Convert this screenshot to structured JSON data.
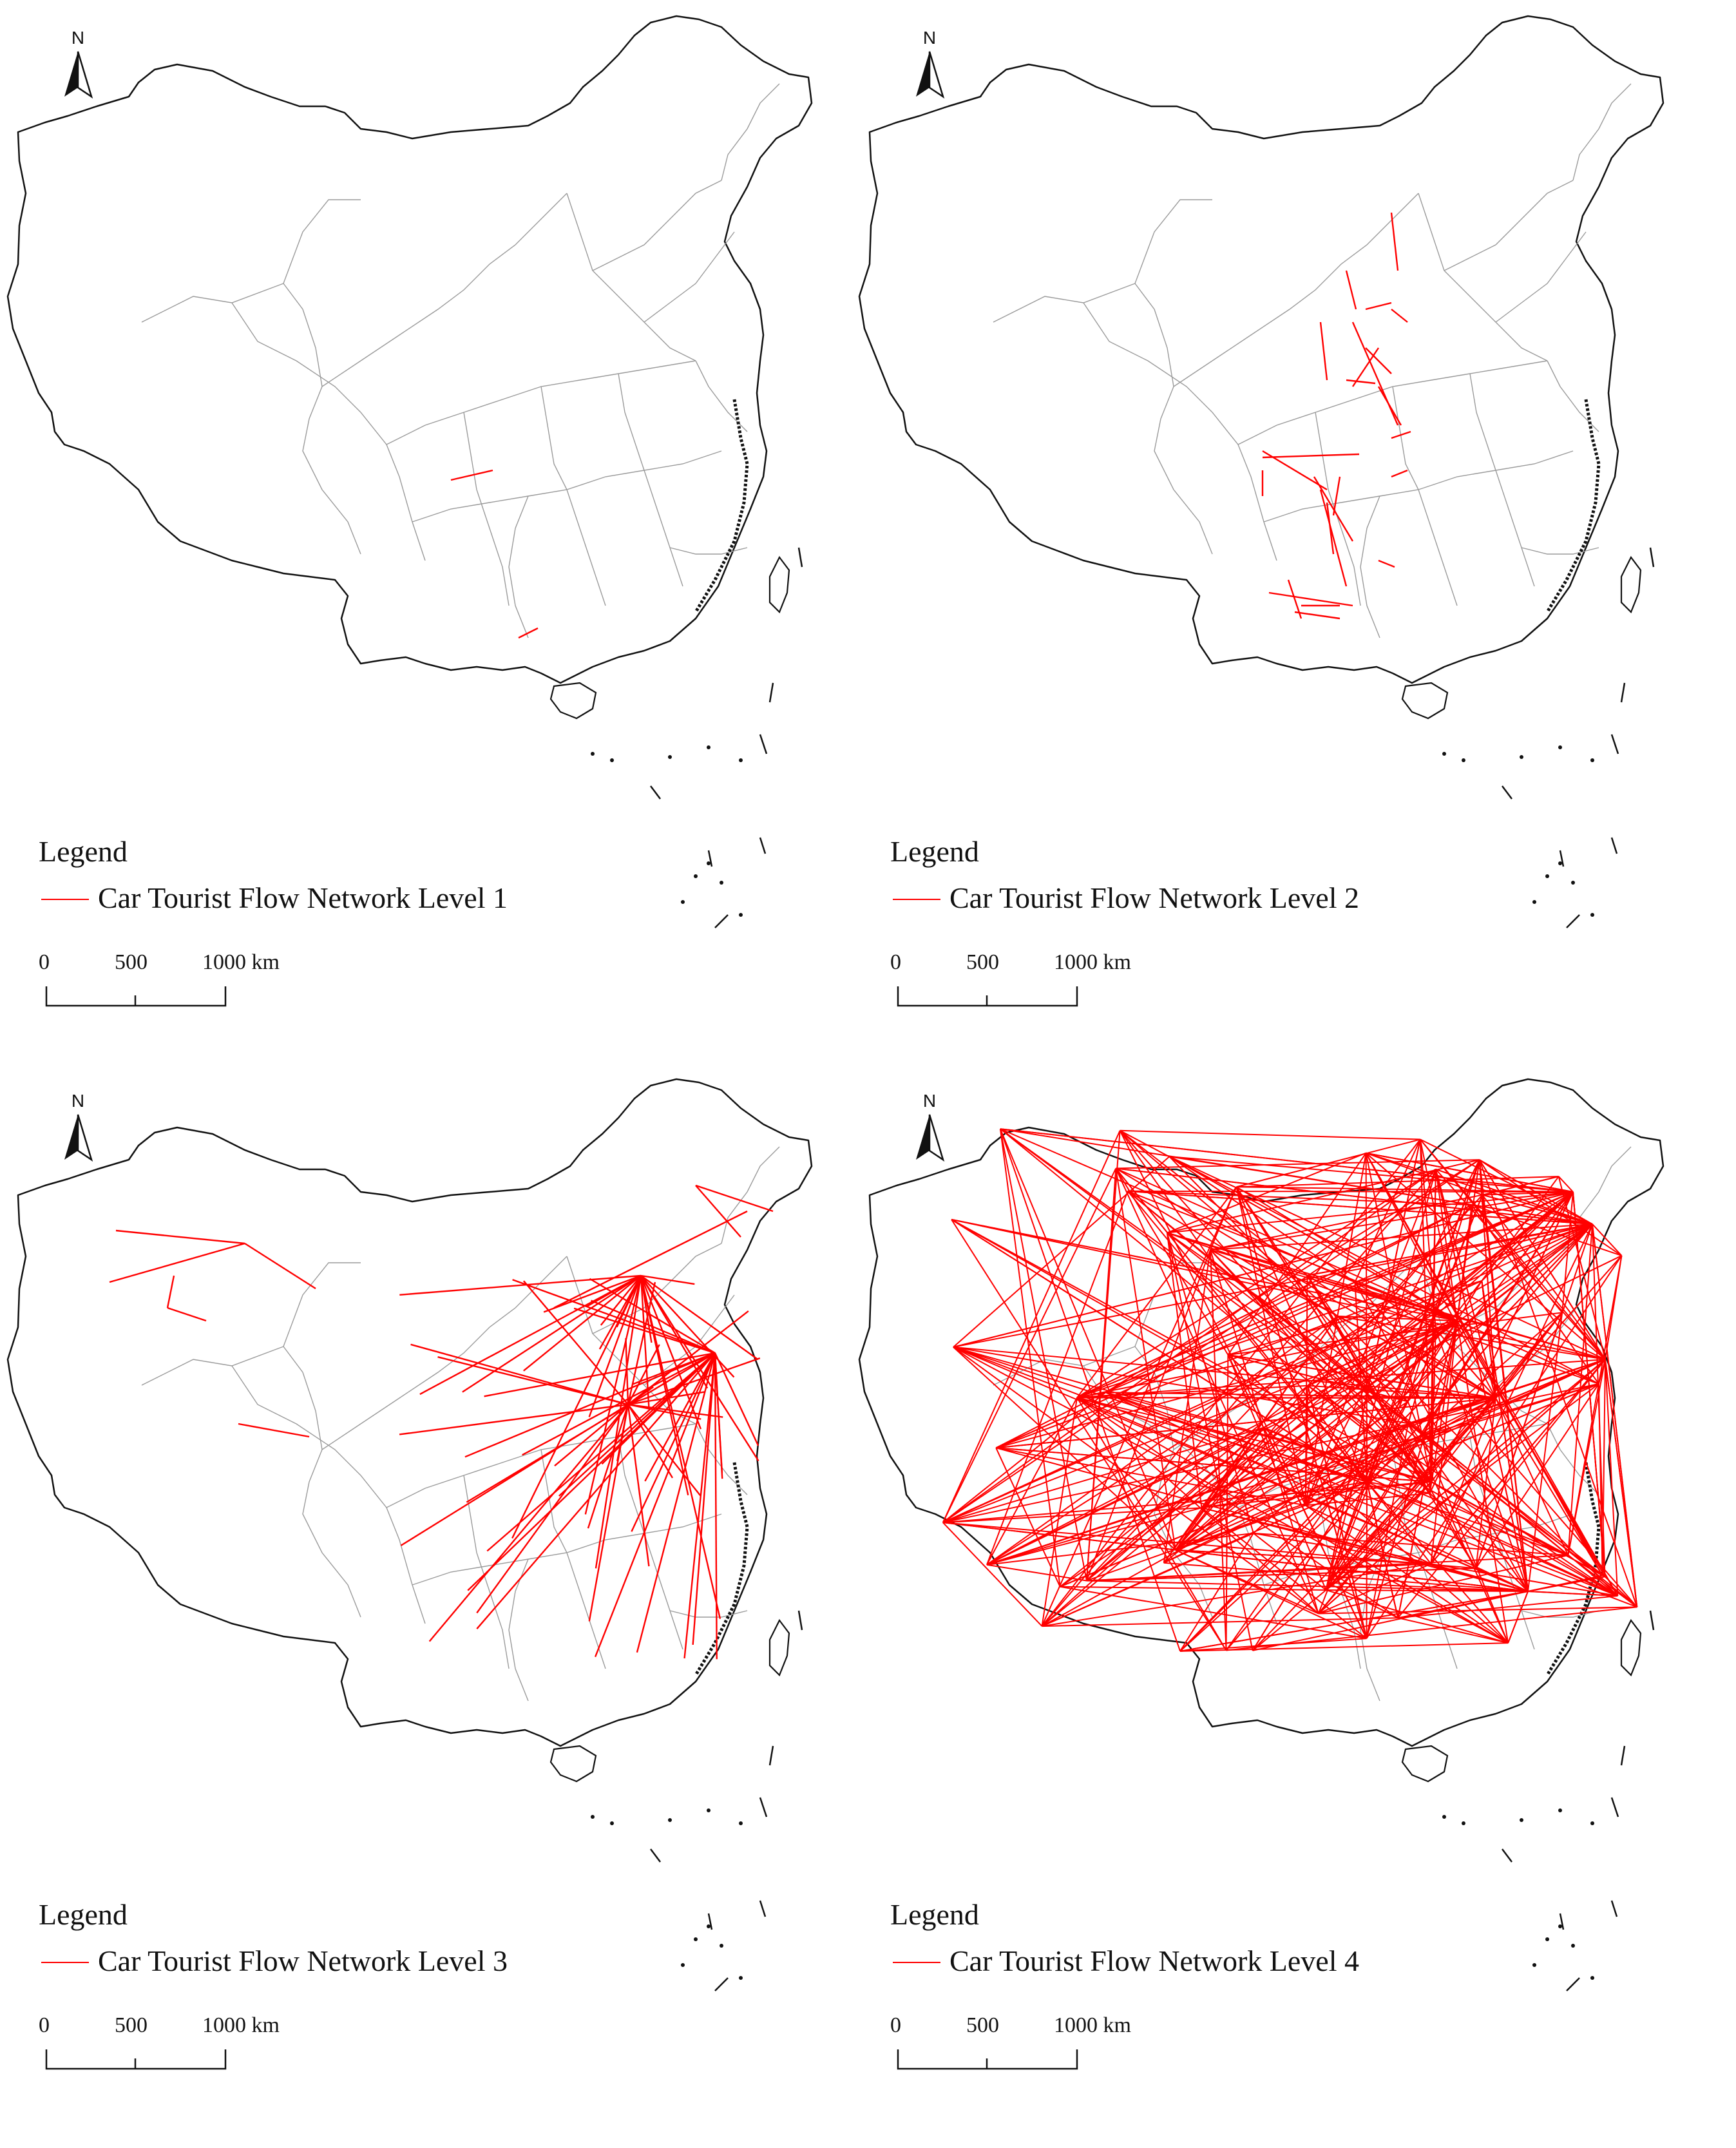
{
  "panels": [
    {
      "legend_title": "Legend",
      "series_label": "Car Tourist Flow Network Level 1",
      "level": 1,
      "scale_labels": [
        "0",
        "500",
        "1000 km"
      ],
      "north_label": "N"
    },
    {
      "legend_title": "Legend",
      "series_label": "Car Tourist Flow Network Level 2",
      "level": 2,
      "scale_labels": [
        "0",
        "500",
        "1000 km"
      ],
      "north_label": "N"
    },
    {
      "legend_title": "Legend",
      "series_label": "Car Tourist Flow Network Level 3",
      "level": 3,
      "scale_labels": [
        "0",
        "500",
        "1000 km"
      ],
      "north_label": "N"
    },
    {
      "legend_title": "Legend",
      "series_label": "Car Tourist Flow Network Level 4",
      "level": 4,
      "scale_labels": [
        "0",
        "500",
        "1000 km"
      ],
      "north_label": "N"
    }
  ],
  "colors": {
    "flow": "#ff0000",
    "boundary": "#111111",
    "province": "#9a9a9a",
    "background": "#ffffff"
  },
  "icons": {
    "north": "north-arrow-icon"
  }
}
